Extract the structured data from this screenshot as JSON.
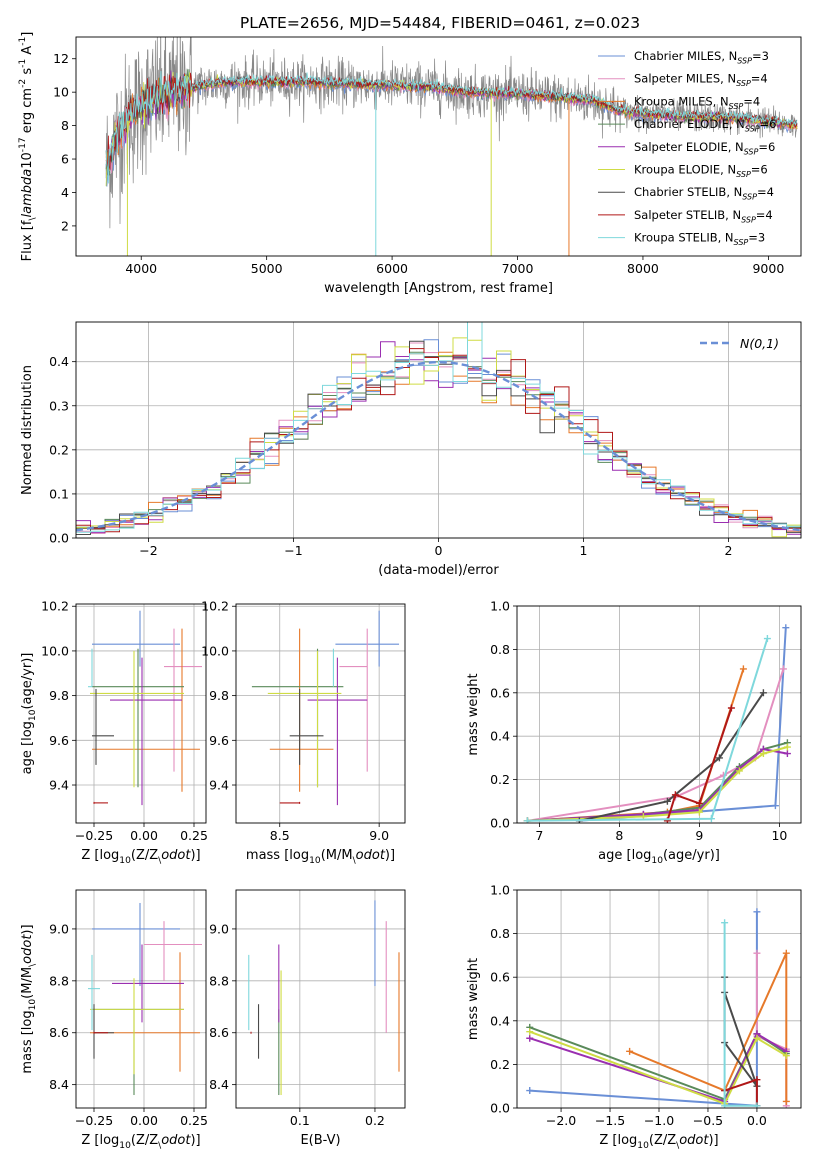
{
  "figure_title": "PLATE=2656, MJD=54484, FIBERID=0461, z=0.023",
  "series": [
    {
      "name": "Chabrier MILES, N$_{SSP}$=3",
      "color": "#6a8fd6"
    },
    {
      "name": "Salpeter MILES, N$_{SSP}$=4",
      "color": "#e38fbf"
    },
    {
      "name": "Kroupa MILES, N$_{SSP}$=4",
      "color": "#e6792a"
    },
    {
      "name": "Chabrier ELODIE, N$_{SSP}$=6",
      "color": "#5a8a5a"
    },
    {
      "name": "Salpeter ELODIE, N$_{SSP}$=6",
      "color": "#9a2fb0"
    },
    {
      "name": "Kroupa ELODIE, N$_{SSP}$=6",
      "color": "#cfdc44"
    },
    {
      "name": "Chabrier STELIB, N$_{SSP}$=4",
      "color": "#4a4a4a"
    },
    {
      "name": "Salpeter STELIB, N$_{SSP}$=4",
      "color": "#b01818"
    },
    {
      "name": "Kroupa STELIB, N$_{SSP}$=3",
      "color": "#7fd8dc"
    }
  ],
  "chart_data": [
    {
      "id": "spectrum",
      "type": "line",
      "xlabel": "wavelength [Angstrom, rest frame]",
      "ylabel": "Flux [f$_\\lambda$10$^{-17}$ erg cm$^{-2}$ s$^{-1}$ A$^{-1}$]",
      "xlim": [
        3480,
        9260
      ],
      "ylim": [
        0.2,
        13.3
      ],
      "xticks": [
        4000,
        5000,
        6000,
        7000,
        8000,
        9000
      ],
      "yticks": [
        2,
        4,
        6,
        8,
        10,
        12
      ],
      "legend": "top-right",
      "continuum": {
        "x": [
          3720,
          3800,
          3900,
          4000,
          4100,
          4300,
          4500,
          4700,
          5000,
          5300,
          5600,
          6000,
          6300,
          6600,
          7000,
          7300,
          7600,
          7800,
          8000,
          8200,
          8400,
          8600,
          8800,
          9000,
          9230
        ],
        "y": [
          5.5,
          7.2,
          8.4,
          9.2,
          9.6,
          10.1,
          10.4,
          10.6,
          10.6,
          10.6,
          10.5,
          10.4,
          10.3,
          10.0,
          9.9,
          9.7,
          9.5,
          8.9,
          8.7,
          8.6,
          8.5,
          8.5,
          8.4,
          8.2,
          8.0
        ]
      },
      "data_noise": 1.3,
      "dips": [
        {
          "series": 8,
          "x": 5870,
          "y": 0.2
        },
        {
          "series": 5,
          "x": 6790,
          "y": 0.2
        },
        {
          "series": 2,
          "x": 7410,
          "y": 0.2
        },
        {
          "series": 5,
          "x": 3890,
          "y": 0.2
        }
      ]
    },
    {
      "id": "residuals",
      "type": "step-histogram",
      "xlabel": "(data-model)/error",
      "ylabel": "Normed distribution",
      "xlim": [
        -2.5,
        2.5
      ],
      "ylim": [
        0,
        0.49
      ],
      "xticks": [
        -2,
        -1,
        0,
        1,
        2
      ],
      "yticks": [
        0.0,
        0.1,
        0.2,
        0.3,
        0.4
      ],
      "bins": 50,
      "legend_label": "$\\mathcal{N}(0,1)$",
      "legend_color": "#6a8fd6",
      "legend": "top-right"
    },
    {
      "id": "age_vs_Z",
      "type": "errorbar",
      "xlabel": "Z [log$_{10}$(Z/Z$_\\odot$)]",
      "ylabel": "age  [log$_{10}$(age/yr)]",
      "xlim": [
        -0.34,
        0.31
      ],
      "ylim": [
        9.23,
        10.21
      ],
      "xticks": [
        -0.25,
        0.0,
        0.25
      ],
      "yticks": [
        9.4,
        9.6,
        9.8,
        10.0,
        10.2
      ],
      "points": [
        {
          "s": 0,
          "x": -0.02,
          "y": 10.03,
          "xerr": [
            0.24,
            0.2
          ],
          "yerr": [
            0.1,
            0.15
          ]
        },
        {
          "s": 1,
          "x": 0.15,
          "y": 9.93,
          "xerr": [
            0.05,
            0.14
          ],
          "yerr": [
            0.47,
            0.17
          ]
        },
        {
          "s": 2,
          "x": 0.19,
          "y": 9.56,
          "xerr": [
            0.45,
            0.09
          ],
          "yerr": [
            0.19,
            0.54
          ]
        },
        {
          "s": 3,
          "x": -0.03,
          "y": 9.84,
          "xerr": [
            0.23,
            0.23
          ],
          "yerr": [
            0.45,
            0.17
          ]
        },
        {
          "s": 4,
          "x": -0.01,
          "y": 9.78,
          "xerr": [
            0.16,
            0.2
          ],
          "yerr": [
            0.47,
            0.19
          ]
        },
        {
          "s": 5,
          "x": -0.05,
          "y": 9.81,
          "xerr": [
            0.22,
            0.25
          ],
          "yerr": [
            0.42,
            0.19
          ]
        },
        {
          "s": 6,
          "x": -0.24,
          "y": 9.62,
          "xerr": [
            0.02,
            0.09
          ],
          "yerr": [
            0.13,
            0.21
          ]
        },
        {
          "s": 7,
          "x": -0.25,
          "y": 9.32,
          "xerr": [
            0.0,
            0.07
          ],
          "yerr": [
            0.0,
            0.0
          ]
        },
        {
          "s": 8,
          "x": -0.26,
          "y": 9.84,
          "xerr": [
            0.02,
            0.0
          ],
          "yerr": [
            0.0,
            0.17
          ]
        }
      ]
    },
    {
      "id": "age_vs_mass",
      "type": "errorbar",
      "xlabel": "mass [log$_{10}$(M/M$_\\odot$)]",
      "ylabel": "",
      "xlim": [
        8.28,
        9.13
      ],
      "ylim": [
        9.23,
        10.21
      ],
      "xticks": [
        8.5,
        9.0
      ],
      "yticks": [
        9.4,
        9.6,
        9.8,
        10.0,
        10.2
      ],
      "points": [
        {
          "s": 0,
          "x": 9.0,
          "y": 10.03,
          "xerr": [
            0.22,
            0.1
          ],
          "yerr": [
            0.1,
            0.15
          ]
        },
        {
          "s": 1,
          "x": 8.94,
          "y": 9.93,
          "xerr": [
            0.14,
            0.0
          ],
          "yerr": [
            0.47,
            0.17
          ]
        },
        {
          "s": 2,
          "x": 8.6,
          "y": 9.56,
          "xerr": [
            0.15,
            0.17
          ],
          "yerr": [
            0.19,
            0.54
          ]
        },
        {
          "s": 3,
          "x": 8.69,
          "y": 9.84,
          "xerr": [
            0.33,
            0.13
          ],
          "yerr": [
            0.45,
            0.17
          ]
        },
        {
          "s": 4,
          "x": 8.79,
          "y": 9.78,
          "xerr": [
            0.15,
            0.15
          ],
          "yerr": [
            0.47,
            0.19
          ]
        },
        {
          "s": 5,
          "x": 8.69,
          "y": 9.81,
          "xerr": [
            0.25,
            0.12
          ],
          "yerr": [
            0.42,
            0.19
          ]
        },
        {
          "s": 6,
          "x": 8.6,
          "y": 9.62,
          "xerr": [
            0.05,
            0.12
          ],
          "yerr": [
            0.13,
            0.21
          ]
        },
        {
          "s": 7,
          "x": 8.6,
          "y": 9.32,
          "xerr": [
            0.1,
            0.0
          ],
          "yerr": [
            0.0,
            0.0
          ]
        },
        {
          "s": 8,
          "x": 8.77,
          "y": 9.84,
          "xerr": [
            0.0,
            0.0
          ],
          "yerr": [
            0.0,
            0.17
          ]
        }
      ]
    },
    {
      "id": "mass_weight_vs_age",
      "type": "line",
      "xlabel": "age  [log$_{10}$(age/yr)]",
      "ylabel": "mass weight",
      "xlim": [
        6.72,
        10.27
      ],
      "ylim": [
        0,
        1
      ],
      "xticks": [
        7,
        8,
        9,
        10
      ],
      "yticks": [
        0.0,
        0.2,
        0.4,
        0.6,
        0.8,
        1.0
      ],
      "lines": [
        {
          "s": 0,
          "x": [
            7.5,
            9.95,
            10.08
          ],
          "y": [
            0.01,
            0.08,
            0.9
          ]
        },
        {
          "s": 1,
          "x": [
            6.85,
            8.7,
            9.3,
            9.7,
            10.05
          ],
          "y": [
            0.01,
            0.12,
            0.22,
            0.3,
            0.71
          ]
        },
        {
          "s": 2,
          "x": [
            6.85,
            8.6,
            9.0,
            9.55
          ],
          "y": [
            0.01,
            0.05,
            0.08,
            0.71
          ]
        },
        {
          "s": 3,
          "x": [
            6.85,
            8.3,
            9.0,
            9.5,
            9.8,
            10.1
          ],
          "y": [
            0.01,
            0.04,
            0.07,
            0.26,
            0.34,
            0.37
          ]
        },
        {
          "s": 4,
          "x": [
            6.85,
            8.3,
            9.0,
            9.5,
            9.8,
            10.1
          ],
          "y": [
            0.01,
            0.04,
            0.06,
            0.25,
            0.34,
            0.32
          ]
        },
        {
          "s": 5,
          "x": [
            6.85,
            8.3,
            9.0,
            9.5,
            9.8,
            10.1
          ],
          "y": [
            0.01,
            0.03,
            0.05,
            0.24,
            0.32,
            0.35
          ]
        },
        {
          "s": 6,
          "x": [
            7.5,
            8.6,
            9.25,
            9.8
          ],
          "y": [
            0.01,
            0.1,
            0.3,
            0.6
          ]
        },
        {
          "s": 7,
          "x": [
            8.6,
            8.7,
            9.0,
            9.4
          ],
          "y": [
            0.01,
            0.13,
            0.09,
            0.53
          ]
        },
        {
          "s": 8,
          "x": [
            6.85,
            9.15,
            9.85
          ],
          "y": [
            0.01,
            0.02,
            0.85
          ]
        }
      ]
    },
    {
      "id": "mass_vs_Z",
      "type": "errorbar",
      "xlabel": "Z [log$_{10}$(Z/Z$_\\odot$)]",
      "ylabel": "mass [log$_{10}$(M/M$_\\odot$)]",
      "xlim": [
        -0.34,
        0.31
      ],
      "ylim": [
        8.31,
        9.15
      ],
      "xticks": [
        -0.25,
        0.0,
        0.25
      ],
      "yticks": [
        8.4,
        8.6,
        8.8,
        9.0
      ],
      "points": [
        {
          "s": 0,
          "x": -0.02,
          "y": 9.0,
          "xerr": [
            0.24,
            0.2
          ],
          "yerr": [
            0.22,
            0.1
          ]
        },
        {
          "s": 1,
          "x": 0.1,
          "y": 8.94,
          "xerr": [
            0.1,
            0.19
          ],
          "yerr": [
            0.14,
            0.09
          ]
        },
        {
          "s": 2,
          "x": 0.18,
          "y": 8.6,
          "xerr": [
            0.45,
            0.1
          ],
          "yerr": [
            0.15,
            0.31
          ]
        },
        {
          "s": 3,
          "x": -0.05,
          "y": 8.69,
          "xerr": [
            0.21,
            0.25
          ],
          "yerr": [
            0.33,
            0.0
          ]
        },
        {
          "s": 4,
          "x": -0.01,
          "y": 8.79,
          "xerr": [
            0.15,
            0.21
          ],
          "yerr": [
            0.15,
            0.15
          ]
        },
        {
          "s": 5,
          "x": -0.05,
          "y": 8.69,
          "xerr": [
            0.22,
            0.25
          ],
          "yerr": [
            0.25,
            0.12
          ]
        },
        {
          "s": 6,
          "x": -0.25,
          "y": 8.6,
          "xerr": [
            0.0,
            0.1
          ],
          "yerr": [
            0.1,
            0.11
          ]
        },
        {
          "s": 7,
          "x": -0.25,
          "y": 8.6,
          "xerr": [
            0.0,
            0.07
          ],
          "yerr": [
            0.0,
            0.0
          ]
        },
        {
          "s": 8,
          "x": -0.26,
          "y": 8.77,
          "xerr": [
            0.02,
            0.04
          ],
          "yerr": [
            0.16,
            0.13
          ]
        }
      ]
    },
    {
      "id": "mass_vs_ebv",
      "type": "errorbar",
      "xlabel": "E(B-V)",
      "ylabel": "",
      "xlim": [
        0.015,
        0.24
      ],
      "ylim": [
        8.31,
        9.15
      ],
      "xticks": [
        0.1,
        0.2
      ],
      "yticks": [
        8.4,
        8.6,
        8.8,
        9.0
      ],
      "points": [
        {
          "s": 0,
          "x": 0.2,
          "y": 9.0,
          "xerr": [
            0,
            0
          ],
          "yerr": [
            0.22,
            0.11
          ]
        },
        {
          "s": 1,
          "x": 0.215,
          "y": 8.94,
          "xerr": [
            0,
            0
          ],
          "yerr": [
            0.34,
            0.09
          ]
        },
        {
          "s": 2,
          "x": 0.232,
          "y": 8.6,
          "xerr": [
            0,
            0
          ],
          "yerr": [
            0.15,
            0.31
          ]
        },
        {
          "s": 3,
          "x": 0.072,
          "y": 8.69,
          "xerr": [
            0,
            0
          ],
          "yerr": [
            0.33,
            0.0
          ]
        },
        {
          "s": 4,
          "x": 0.072,
          "y": 8.79,
          "xerr": [
            0,
            0
          ],
          "yerr": [
            0.15,
            0.15
          ]
        },
        {
          "s": 5,
          "x": 0.075,
          "y": 8.69,
          "xerr": [
            0,
            0
          ],
          "yerr": [
            0.33,
            0.15
          ]
        },
        {
          "s": 6,
          "x": 0.045,
          "y": 8.6,
          "xerr": [
            0,
            0
          ],
          "yerr": [
            0.1,
            0.11
          ]
        },
        {
          "s": 7,
          "x": 0.035,
          "y": 8.6,
          "xerr": [
            0,
            0
          ],
          "yerr": [
            0.0,
            0.0
          ]
        },
        {
          "s": 8,
          "x": 0.032,
          "y": 8.77,
          "xerr": [
            0,
            0
          ],
          "yerr": [
            0.16,
            0.13
          ]
        }
      ]
    },
    {
      "id": "mass_weight_vs_Z",
      "type": "line",
      "xlabel": "Z [log$_{10}$(Z/Z$_\\odot$)]",
      "ylabel": "mass weight",
      "xlim": [
        -2.45,
        0.45
      ],
      "ylim": [
        0,
        1
      ],
      "xticks": [
        -2.0,
        -1.5,
        -1.0,
        -0.5,
        0.0
      ],
      "yticks": [
        0.0,
        0.2,
        0.4,
        0.6,
        0.8,
        1.0
      ],
      "lines": [
        {
          "s": 0,
          "x": [
            -2.32,
            0.0,
            0.0
          ],
          "y": [
            0.08,
            0.01,
            0.9
          ]
        },
        {
          "s": 1,
          "x": [
            0.0,
            0.0,
            0.3,
            0.3
          ],
          "y": [
            0.71,
            0.33,
            0.27,
            0.01
          ]
        },
        {
          "s": 2,
          "x": [
            -1.3,
            -0.33,
            0.3,
            0.3
          ],
          "y": [
            0.26,
            0.08,
            0.71,
            0.03
          ]
        },
        {
          "s": 3,
          "x": [
            -2.32,
            -0.33,
            0.0,
            0.3
          ],
          "y": [
            0.37,
            0.04,
            0.34,
            0.25
          ]
        },
        {
          "s": 4,
          "x": [
            -2.32,
            -0.33,
            0.0,
            0.3
          ],
          "y": [
            0.32,
            0.03,
            0.34,
            0.26
          ]
        },
        {
          "s": 5,
          "x": [
            -2.32,
            -0.33,
            0.0,
            0.3
          ],
          "y": [
            0.35,
            0.02,
            0.32,
            0.24
          ]
        },
        {
          "s": 6,
          "x": [
            -0.33,
            -0.33,
            0.0,
            -0.33
          ],
          "y": [
            0.6,
            0.3,
            0.1,
            0.53
          ]
        },
        {
          "s": 7,
          "x": [
            -0.33,
            0.0,
            0.0
          ],
          "y": [
            0.08,
            0.13,
            0.01
          ]
        },
        {
          "s": 8,
          "x": [
            -0.33,
            -0.33,
            0.0
          ],
          "y": [
            0.85,
            0.01,
            0.01
          ]
        }
      ]
    }
  ]
}
